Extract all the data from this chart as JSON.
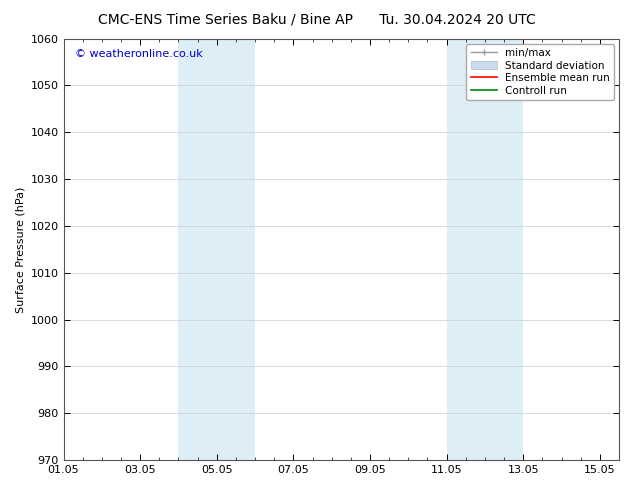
{
  "title_left": "CMC-ENS Time Series Baku / Bine AP",
  "title_right": "Tu. 30.04.2024 20 UTC",
  "ylabel": "Surface Pressure (hPa)",
  "ylim": [
    970,
    1060
  ],
  "yticks": [
    970,
    980,
    990,
    1000,
    1010,
    1020,
    1030,
    1040,
    1050,
    1060
  ],
  "xtick_labels": [
    "01.05",
    "03.05",
    "05.05",
    "07.05",
    "09.05",
    "11.05",
    "13.05",
    "15.05"
  ],
  "xtick_positions": [
    0,
    2,
    4,
    6,
    8,
    10,
    12,
    14
  ],
  "shaded_bands": [
    {
      "xmin": 3.0,
      "xmax": 4.0
    },
    {
      "xmin": 4.0,
      "xmax": 5.0
    },
    {
      "xmin": 10.0,
      "xmax": 11.0
    },
    {
      "xmin": 11.0,
      "xmax": 12.0
    }
  ],
  "shaded_color": "#ddeef7",
  "bg_color": "#ffffff",
  "grid_color": "#cccccc",
  "watermark_text": "© weatheronline.co.uk",
  "watermark_color": "#0000cc",
  "legend_entries": [
    {
      "label": "min/max",
      "color": "#999999",
      "style": "minmax"
    },
    {
      "label": "Standard deviation",
      "color": "#ccddf0",
      "style": "stddev"
    },
    {
      "label": "Ensemble mean run",
      "color": "#ff0000",
      "style": "line"
    },
    {
      "label": "Controll run",
      "color": "#008800",
      "style": "line"
    }
  ],
  "title_fontsize": 10,
  "axis_fontsize": 8,
  "tick_fontsize": 8,
  "legend_fontsize": 7.5
}
